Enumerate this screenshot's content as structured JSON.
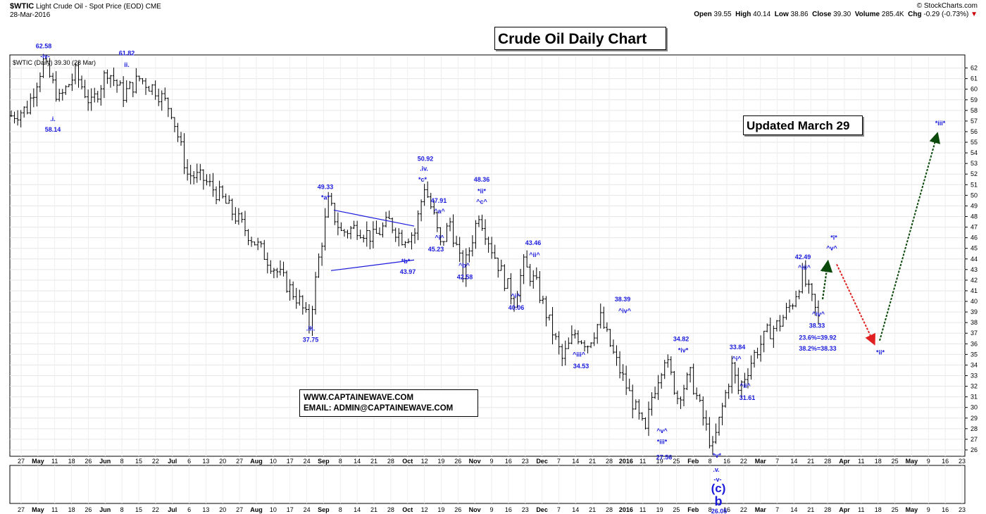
{
  "header": {
    "symbol": "$WTIC",
    "name": "Light Crude Oil - Spot Price (EOD)",
    "exchange": "CME",
    "date": "28-Mar-2016",
    "logo": "© StockCharts.com",
    "open_label": "Open",
    "open": "39.55",
    "high_label": "High",
    "high": "40.14",
    "low_label": "Low",
    "low": "38.86",
    "close_label": "Close",
    "close": "39.30",
    "volume_label": "Volume",
    "volume": "285.4K",
    "chg_label": "Chg",
    "chg": "-0.29 (-0.73%)"
  },
  "legend_text": "$WTIC (Daily) 39.30 (28 Mar)",
  "title_box": "Crude Oil Daily Chart",
  "updated_box": "Updated March 29",
  "contact": {
    "website": "WWW.CAPTAINEWAVE.COM",
    "email": "EMAIL: ADMIN@CAPTAINEWAVE.COM"
  },
  "colors": {
    "price_bars": "#000000",
    "annotation": "#1a1adc",
    "down_arrow": "#e02020",
    "up_arrow": "#0b4a0b",
    "triangle": "#1a1adc"
  },
  "chart_data": {
    "type": "ohlc",
    "title": "Crude Oil Daily Chart",
    "y_axis": {
      "min": 25,
      "max": 63,
      "ticks": [
        26,
        27,
        28,
        29,
        30,
        31,
        32,
        33,
        34,
        35,
        36,
        37,
        38,
        39,
        40,
        41,
        42,
        43,
        44,
        45,
        46,
        47,
        48,
        49,
        50,
        51,
        52,
        53,
        54,
        55,
        56,
        57,
        58,
        59,
        60,
        61,
        62
      ]
    },
    "x_labels": [
      "27",
      "May",
      "11",
      "18",
      "26",
      "Jun",
      "8",
      "15",
      "22",
      "Jul",
      "6",
      "13",
      "20",
      "27",
      "Aug",
      "10",
      "17",
      "24",
      "Sep",
      "8",
      "14",
      "21",
      "28",
      "Oct",
      "12",
      "19",
      "26",
      "Nov",
      "9",
      "16",
      "23",
      "Dec",
      "7",
      "14",
      "21",
      "28",
      "2016",
      "11",
      "19",
      "25",
      "Feb",
      "8",
      "16",
      "22",
      "Mar",
      "7",
      "14",
      "21",
      "28",
      "Apr",
      "11",
      "18",
      "25",
      "May",
      "9",
      "16",
      "23"
    ],
    "x_labels_lower": [
      "27",
      "May",
      "11",
      "18",
      "26",
      "Jun",
      "8",
      "15",
      "22",
      "Jul",
      "6",
      "13",
      "20",
      "27",
      "Aug",
      "10",
      "17",
      "24",
      "Sep",
      "8",
      "14",
      "21",
      "28",
      "Oct",
      "12",
      "19",
      "26",
      "Nov",
      "9",
      "16",
      "23",
      "Dec",
      "7",
      "14",
      "21",
      "28",
      "2016",
      "11",
      "19",
      "25",
      "Feb",
      "8",
      "16",
      "22",
      "Mar",
      "7",
      "14",
      "21",
      "28",
      "Apr",
      "11",
      "18",
      "25",
      "May",
      "9",
      "16",
      "23"
    ],
    "price_path": [
      [
        0,
        57.5
      ],
      [
        5,
        58.2
      ],
      [
        10,
        62.58
      ],
      [
        15,
        59
      ],
      [
        20,
        61.5
      ],
      [
        25,
        58.5
      ],
      [
        30,
        61.82
      ],
      [
        35,
        59.5
      ],
      [
        40,
        61
      ],
      [
        45,
        60
      ],
      [
        50,
        58
      ],
      [
        55,
        52
      ],
      [
        60,
        51.5
      ],
      [
        65,
        50
      ],
      [
        70,
        48
      ],
      [
        75,
        46
      ],
      [
        80,
        44
      ],
      [
        85,
        42
      ],
      [
        90,
        40
      ],
      [
        93,
        37.75
      ],
      [
        96,
        44
      ],
      [
        99,
        49.33
      ],
      [
        103,
        46.5
      ],
      [
        108,
        47
      ],
      [
        113,
        46
      ],
      [
        118,
        47.5
      ],
      [
        122,
        46
      ],
      [
        126,
        46.5
      ],
      [
        129,
        50.92
      ],
      [
        132,
        47.91
      ],
      [
        134,
        45.23
      ],
      [
        137,
        47.5
      ],
      [
        141,
        42.58
      ],
      [
        146,
        48.36
      ],
      [
        150,
        45
      ],
      [
        154,
        42
      ],
      [
        157,
        40.06
      ],
      [
        160,
        43.46
      ],
      [
        164,
        41.5
      ],
      [
        168,
        38
      ],
      [
        172,
        34.53
      ],
      [
        176,
        37
      ],
      [
        180,
        36
      ],
      [
        184,
        38.39
      ],
      [
        188,
        35
      ],
      [
        192,
        32
      ],
      [
        196,
        29
      ],
      [
        198,
        27.56
      ],
      [
        200,
        31
      ],
      [
        204,
        34.82
      ],
      [
        208,
        31
      ],
      [
        212,
        33
      ],
      [
        216,
        29
      ],
      [
        219,
        26.05
      ],
      [
        222,
        30
      ],
      [
        225,
        33.84
      ],
      [
        227,
        31.61
      ],
      [
        232,
        35
      ],
      [
        236,
        37
      ],
      [
        240,
        38
      ],
      [
        244,
        40
      ],
      [
        247,
        42.49
      ],
      [
        250,
        40
      ],
      [
        252,
        38.33
      ]
    ],
    "wave_labels": [
      {
        "date": "May 2015",
        "wave": "-iv-",
        "value": "62.58"
      },
      {
        "date": "Jun 2015",
        "wave": "ii.",
        "value": "61.82"
      },
      {
        "date": "May 2015",
        "wave": ".i.",
        "value": "58.14"
      },
      {
        "date": "Aug 2015",
        "wave": ".iii.",
        "value": "37.75"
      },
      {
        "date": "Sep 2015",
        "wave": "*a*",
        "value": "49.33"
      },
      {
        "date": "Sep 2015",
        "wave": "*b*",
        "value": "43.97"
      },
      {
        "date": "Oct 2015",
        "wave": ".iv. *c*",
        "value": "50.92"
      },
      {
        "date": "Oct 2015",
        "wave": "^a^",
        "value": "47.91"
      },
      {
        "date": "Oct 2015",
        "wave": "^i^",
        "value": "45.23"
      },
      {
        "date": "Oct 2015",
        "wave": "^b^",
        "value": "42.58"
      },
      {
        "date": "Nov 2015",
        "wave": "*ii* ^c^",
        "value": "48.36"
      },
      {
        "date": "Nov 2015",
        "wave": "^i^",
        "value": "40.06"
      },
      {
        "date": "Nov 2015",
        "wave": "^ii^",
        "value": "43.46"
      },
      {
        "date": "Dec 2015",
        "wave": "^iii^",
        "value": "34.53"
      },
      {
        "date": "Dec 2015",
        "wave": "^iv^",
        "value": "38.39"
      },
      {
        "date": "Jan 2016",
        "wave": "^v^ *iii*",
        "value": "27.56"
      },
      {
        "date": "Jan 2016",
        "wave": "*iv*",
        "value": "34.82"
      },
      {
        "date": "Feb 2016",
        "wave": "*v* .v. -v- (c) b",
        "value": "26.05"
      },
      {
        "date": "Feb 2016",
        "wave": "^i^",
        "value": "33.84"
      },
      {
        "date": "Feb 2016",
        "wave": "^ii^",
        "value": "31.61"
      },
      {
        "date": "Mar 2016",
        "wave": "^iii^",
        "value": "42.49"
      },
      {
        "date": "Mar 2016",
        "wave": "^iv^",
        "value": "38.33"
      }
    ],
    "fib_notes": [
      "23.6%=39.92",
      "38.2%=38.33"
    ],
    "projection": [
      {
        "label": "*i* ^v^",
        "value": 44
      },
      {
        "label": "*ii*",
        "value": 35.5
      },
      {
        "label": "*iii*",
        "value": 56.5
      }
    ]
  }
}
